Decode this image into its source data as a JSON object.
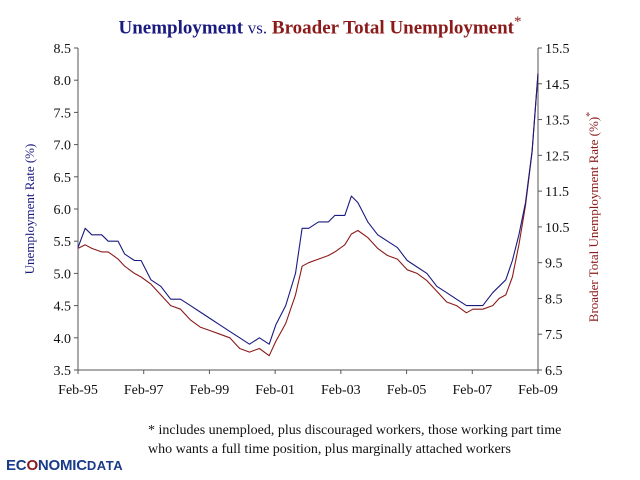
{
  "header": {
    "title_part1": "Unemployment",
    "title_vs": "vs.",
    "title_part2": "Broader Total Unemployment",
    "title_asterisk": "*"
  },
  "footnote": {
    "line1": "* includes unemploed, plus discouraged workers, those working part time",
    "line2": "who wants a full time position, plus marginally attached workers"
  },
  "logo": {
    "part1": "EC",
    "accent": "O",
    "part2": "NOMIC",
    "part3": "DATA"
  },
  "colors": {
    "unemployment": "#1a1a80",
    "broader": "#8b1a1a",
    "axis": "#555555"
  },
  "chart_data": {
    "type": "line",
    "x_tick_labels": [
      "Feb-95",
      "Feb-97",
      "Feb-99",
      "Feb-01",
      "Feb-03",
      "Feb-05",
      "Feb-07",
      "Feb-09"
    ],
    "x_range": [
      1995.08,
      2009.08
    ],
    "left_axis": {
      "label": "Unemployment Rate (%)",
      "ylim": [
        3.5,
        8.5
      ],
      "ticks": [
        "3.5",
        "4.0",
        "4.5",
        "5.0",
        "5.5",
        "6.0",
        "6.5",
        "7.0",
        "7.5",
        "8.0",
        "8.5"
      ]
    },
    "right_axis": {
      "label": "Broader Total Unemployment Rate (%)",
      "label_asterisk": "*",
      "ylim": [
        6.5,
        15.5
      ],
      "ticks": [
        "6.5",
        "7.5",
        "8.5",
        "9.5",
        "10.5",
        "11.5",
        "12.5",
        "13.5",
        "14.5",
        "15.5"
      ]
    },
    "series": [
      {
        "axis": "left",
        "x": [
          1995.08,
          1995.3,
          1995.5,
          1995.8,
          1996.0,
          1996.3,
          1996.5,
          1996.8,
          1997.0,
          1997.3,
          1997.6,
          1997.9,
          1998.2,
          1998.5,
          1998.8,
          1999.1,
          1999.4,
          1999.7,
          2000.0,
          2000.3,
          2000.6,
          2000.9,
          2001.1,
          2001.4,
          2001.7,
          2001.9,
          2002.1,
          2002.4,
          2002.7,
          2002.9,
          2003.2,
          2003.4,
          2003.6,
          2003.9,
          2004.2,
          2004.5,
          2004.8,
          2005.1,
          2005.4,
          2005.7,
          2006.0,
          2006.3,
          2006.6,
          2006.9,
          2007.1,
          2007.4,
          2007.7,
          2007.9,
          2008.1,
          2008.3,
          2008.5,
          2008.7,
          2008.9,
          2009.08
        ],
        "values": [
          5.4,
          5.7,
          5.6,
          5.6,
          5.5,
          5.5,
          5.3,
          5.2,
          5.2,
          4.9,
          4.8,
          4.6,
          4.6,
          4.5,
          4.4,
          4.3,
          4.2,
          4.1,
          4.0,
          3.9,
          4.0,
          3.9,
          4.2,
          4.5,
          5.0,
          5.7,
          5.7,
          5.8,
          5.8,
          5.9,
          5.9,
          6.2,
          6.1,
          5.8,
          5.6,
          5.5,
          5.4,
          5.2,
          5.1,
          5.0,
          4.8,
          4.7,
          4.6,
          4.5,
          4.5,
          4.5,
          4.7,
          4.8,
          4.9,
          5.2,
          5.6,
          6.1,
          6.9,
          8.1
        ]
      },
      {
        "axis": "right",
        "x": [
          1995.08,
          1995.3,
          1995.5,
          1995.8,
          1996.0,
          1996.3,
          1996.5,
          1996.8,
          1997.0,
          1997.3,
          1997.6,
          1997.9,
          1998.2,
          1998.5,
          1998.8,
          1999.1,
          1999.4,
          1999.7,
          2000.0,
          2000.3,
          2000.6,
          2000.9,
          2001.1,
          2001.4,
          2001.7,
          2001.9,
          2002.1,
          2002.4,
          2002.7,
          2002.9,
          2003.2,
          2003.4,
          2003.6,
          2003.9,
          2004.2,
          2004.5,
          2004.8,
          2005.1,
          2005.4,
          2005.7,
          2006.0,
          2006.3,
          2006.6,
          2006.9,
          2007.1,
          2007.4,
          2007.7,
          2007.9,
          2008.1,
          2008.3,
          2008.5,
          2008.7,
          2008.9,
          2009.08
        ],
        "values": [
          9.9,
          10.0,
          9.9,
          9.8,
          9.8,
          9.6,
          9.4,
          9.2,
          9.1,
          8.9,
          8.6,
          8.3,
          8.2,
          7.9,
          7.7,
          7.6,
          7.5,
          7.4,
          7.1,
          7.0,
          7.1,
          6.9,
          7.3,
          7.8,
          8.6,
          9.4,
          9.5,
          9.6,
          9.7,
          9.8,
          10.0,
          10.3,
          10.4,
          10.2,
          9.9,
          9.7,
          9.6,
          9.3,
          9.2,
          9.0,
          8.7,
          8.4,
          8.3,
          8.1,
          8.2,
          8.2,
          8.3,
          8.5,
          8.6,
          9.1,
          10.0,
          11.1,
          12.6,
          14.8
        ]
      }
    ]
  }
}
